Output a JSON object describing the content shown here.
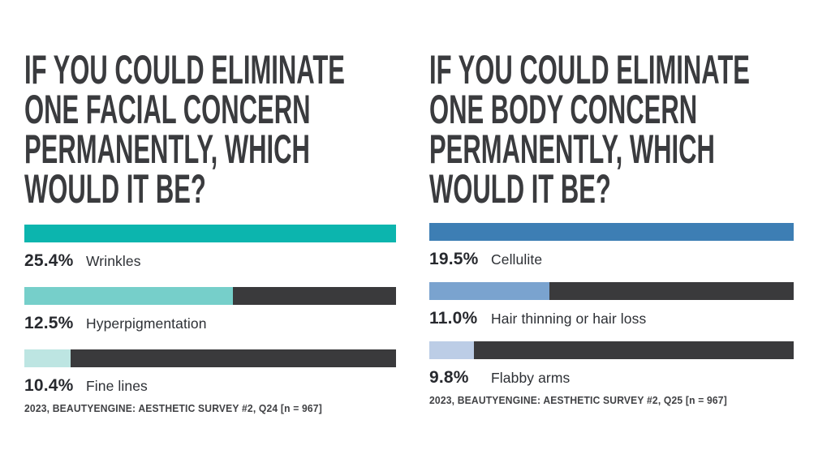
{
  "page": {
    "background": "#ffffff",
    "bar_track_color": "#3a3a3c"
  },
  "chart_data": [
    {
      "type": "bar",
      "orientation": "horizontal",
      "title": "IF YOU COULD ELIMINATE ONE FACIAL CONCERN PERMANENTLY, WHICH WOULD IT BE?",
      "title_lines": [
        "IF YOU COULD ELIMINATE",
        "ONE FACIAL CONCERN",
        "PERMANENTLY, WHICH",
        "WOULD IT BE?"
      ],
      "categories": [
        "Wrinkles",
        "Hyperpigmentation",
        "Fine lines"
      ],
      "values": [
        25.4,
        12.5,
        10.4
      ],
      "items": [
        {
          "value": 25.4,
          "value_label": "25.4%",
          "label": "Wrinkles",
          "fill_pct": 100,
          "fill_color": "#0cb5ae"
        },
        {
          "value": 12.5,
          "value_label": "12.5%",
          "label": "Hyperpigmentation",
          "fill_pct": 56.1,
          "fill_color": "#76cfca"
        },
        {
          "value": 10.4,
          "value_label": "10.4%",
          "label": "Fine lines",
          "fill_pct": 12.4,
          "fill_color": "#bde5e2"
        }
      ],
      "track_color": "#3a3a3c",
      "source": "2023, BEAUTYENGINE: AESTHETIC SURVEY #2, Q24 [n = 967]",
      "legend": false,
      "grid": false,
      "xlabel": "",
      "ylabel": ""
    },
    {
      "type": "bar",
      "orientation": "horizontal",
      "title": "IF YOU COULD ELIMINATE ONE BODY CONCERN PERMANENTLY, WHICH WOULD IT BE?",
      "title_lines": [
        "IF YOU COULD ELIMINATE",
        "ONE BODY CONCERN",
        "PERMANENTLY, WHICH",
        "WOULD IT BE?"
      ],
      "categories": [
        "Cellulite",
        "Hair thinning or hair loss",
        "Flabby arms"
      ],
      "values": [
        19.5,
        11.0,
        9.8
      ],
      "items": [
        {
          "value": 19.5,
          "value_label": "19.5%",
          "label": "Cellulite",
          "fill_pct": 100,
          "fill_color": "#3d7eb4"
        },
        {
          "value": 11.0,
          "value_label": "11.0%",
          "label": "Hair thinning or hair loss",
          "fill_pct": 33.0,
          "fill_color": "#7aa3cf"
        },
        {
          "value": 9.8,
          "value_label": "9.8%",
          "label": "Flabby arms",
          "fill_pct": 12.2,
          "fill_color": "#bccde6"
        }
      ],
      "track_color": "#3a3a3c",
      "source": "2023, BEAUTYENGINE: AESTHETIC SURVEY #2, Q25 [n = 967]",
      "legend": false,
      "grid": false,
      "xlabel": "",
      "ylabel": ""
    }
  ]
}
